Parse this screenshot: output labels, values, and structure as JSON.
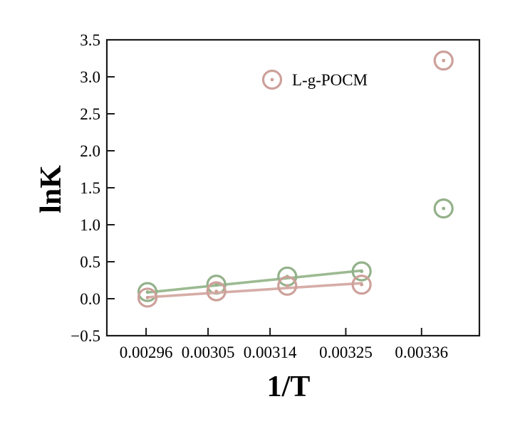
{
  "figure": {
    "background": "#ffffff",
    "frame_color": "#1a1a1a"
  },
  "chart_data": {
    "type": "scatter",
    "title": "",
    "xlabel": "1/T",
    "ylabel": "lnK",
    "xlim": [
      0.002903,
      0.003444
    ],
    "ylim": [
      -0.5,
      3.5
    ],
    "grid": false,
    "frame": "full-box",
    "tick_direction": "in",
    "x_ticks": {
      "values": [
        0.00296,
        0.00305,
        0.00314,
        0.00325,
        0.00336
      ],
      "labels": [
        "0.00296",
        "0.00305",
        "0.00314",
        "0.00325",
        "0.00336"
      ]
    },
    "y_ticks": {
      "values": [
        -0.5,
        0.0,
        0.5,
        1.0,
        1.5,
        2.0,
        2.5,
        3.0,
        3.5
      ],
      "labels": [
        "−0.5",
        "0.0",
        "0.5",
        "1.0",
        "1.5",
        "2.0",
        "2.5",
        "3.0",
        "3.5"
      ]
    },
    "legend": {
      "position": "upper-center-inside",
      "entries": [
        {
          "label": "L-g-POCM",
          "marker": "open-circle-dot",
          "color": "#cda09a"
        }
      ]
    },
    "series": [
      {
        "name": "green-series-unlabeled",
        "color": "#93b18a",
        "line_color": "#9cba92",
        "marker": "open-circle-dot",
        "points": [
          [
            0.002962,
            0.09
          ],
          [
            0.003062,
            0.19
          ],
          [
            0.003165,
            0.3
          ],
          [
            0.003273,
            0.37
          ],
          [
            0.003392,
            1.22
          ]
        ],
        "fit_line": [
          [
            0.002962,
            0.085
          ],
          [
            0.003273,
            0.38
          ]
        ]
      },
      {
        "name": "L-g-POCM",
        "color": "#cda09a",
        "line_color": "#d6ada7",
        "marker": "open-circle-dot",
        "points": [
          [
            0.002962,
            0.015
          ],
          [
            0.003062,
            0.1
          ],
          [
            0.003165,
            0.175
          ],
          [
            0.003273,
            0.19
          ],
          [
            0.003392,
            3.22
          ]
        ],
        "fit_line": [
          [
            0.002962,
            0.02
          ],
          [
            0.003273,
            0.21
          ]
        ]
      }
    ]
  }
}
